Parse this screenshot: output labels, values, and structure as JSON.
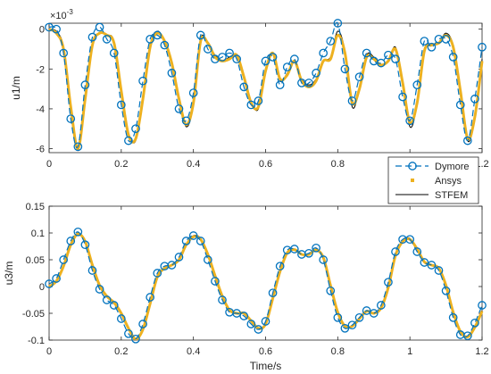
{
  "colors": {
    "dymore": "#0072BD",
    "ansys": "#EDB120",
    "stfem": "#000000",
    "axis": "#262626"
  },
  "chart_data": [
    {
      "type": "line",
      "ylabel": "u1/m",
      "xlabel": "",
      "exponent_label": "×10",
      "exponent_power": "-3",
      "xlim": [
        0,
        1.2
      ],
      "ylim": [
        -6.2,
        0.3
      ],
      "xticks": [
        0,
        0.2,
        0.4,
        0.6,
        0.8,
        1,
        1.2
      ],
      "xticklabels": [
        "0",
        "0.2",
        "0.4",
        "0.6",
        "0.8",
        "1",
        "1.2"
      ],
      "yticks": [
        -6,
        -4,
        -2,
        0
      ],
      "yticklabels": [
        "-6",
        "-4",
        "-2",
        "0"
      ],
      "legend": {
        "placement": "lower-right",
        "entries": [
          "Dymore",
          "Ansys",
          "STFEM"
        ]
      },
      "series": [
        {
          "name": "STFEM",
          "x": [
            0,
            0.02,
            0.04,
            0.06,
            0.08,
            0.1,
            0.12,
            0.14,
            0.16,
            0.18,
            0.2,
            0.22,
            0.24,
            0.26,
            0.28,
            0.3,
            0.32,
            0.34,
            0.36,
            0.38,
            0.4,
            0.42,
            0.44,
            0.46,
            0.48,
            0.5,
            0.52,
            0.54,
            0.56,
            0.58,
            0.6,
            0.62,
            0.64,
            0.66,
            0.68,
            0.7,
            0.72,
            0.74,
            0.76,
            0.78,
            0.8,
            0.82,
            0.84,
            0.86,
            0.88,
            0.9,
            0.92,
            0.94,
            0.96,
            0.98,
            1,
            1.02,
            1.04,
            1.06,
            1.08,
            1.1,
            1.12,
            1.14,
            1.16,
            1.18,
            1.2
          ],
          "values": [
            0,
            -0.1,
            -0.9,
            -3.8,
            -6.1,
            -3.6,
            -0.7,
            -0.2,
            -0.3,
            -0.6,
            -3.0,
            -5.2,
            -5.6,
            -3.6,
            -0.8,
            -0.1,
            -0.6,
            -1.6,
            -3.4,
            -4.9,
            -3.8,
            -0.5,
            -0.7,
            -1.3,
            -1.6,
            -1.4,
            -1.3,
            -2.3,
            -3.6,
            -4.0,
            -2.0,
            -1.2,
            -2.6,
            -2.2,
            -1.6,
            -2.5,
            -2.8,
            -2.5,
            -1.6,
            -1.4,
            -0.1,
            -1.1,
            -3.9,
            -3.0,
            -1.3,
            -1.4,
            -1.8,
            -1.6,
            -0.9,
            -2.6,
            -4.9,
            -3.8,
            -1.0,
            -0.8,
            -0.7,
            -0.2,
            -0.8,
            -3.0,
            -5.6,
            -4.5,
            -1.5
          ]
        },
        {
          "name": "Ansys",
          "x": [
            0,
            0.02,
            0.04,
            0.06,
            0.08,
            0.1,
            0.12,
            0.14,
            0.16,
            0.18,
            0.2,
            0.22,
            0.24,
            0.26,
            0.28,
            0.3,
            0.32,
            0.34,
            0.36,
            0.38,
            0.4,
            0.42,
            0.44,
            0.46,
            0.48,
            0.5,
            0.52,
            0.54,
            0.56,
            0.58,
            0.6,
            0.62,
            0.64,
            0.66,
            0.68,
            0.7,
            0.72,
            0.74,
            0.76,
            0.78,
            0.8,
            0.82,
            0.84,
            0.86,
            0.88,
            0.9,
            0.92,
            0.94,
            0.96,
            0.98,
            1,
            1.02,
            1.04,
            1.06,
            1.08,
            1.1,
            1.12,
            1.14,
            1.16,
            1.18,
            1.2
          ],
          "values": [
            0,
            -0.2,
            -1.0,
            -3.9,
            -6.0,
            -3.5,
            -0.8,
            -0.2,
            -0.3,
            -0.7,
            -3.1,
            -5.3,
            -5.5,
            -3.5,
            -0.9,
            -0.2,
            -0.6,
            -1.7,
            -3.5,
            -4.8,
            -3.7,
            -0.6,
            -0.7,
            -1.4,
            -1.6,
            -1.5,
            -1.3,
            -2.4,
            -3.7,
            -3.9,
            -2.1,
            -1.2,
            -2.5,
            -2.3,
            -1.6,
            -2.6,
            -2.9,
            -2.6,
            -1.6,
            -1.5,
            -0.3,
            -1.2,
            -3.7,
            -3.0,
            -1.4,
            -1.5,
            -1.8,
            -1.6,
            -1.0,
            -2.7,
            -4.7,
            -3.7,
            -1.1,
            -0.8,
            -0.7,
            -0.3,
            -0.9,
            -3.1,
            -5.5,
            -4.4,
            -1.6
          ]
        },
        {
          "name": "Dymore",
          "x": [
            0,
            0.02,
            0.04,
            0.06,
            0.08,
            0.1,
            0.12,
            0.14,
            0.16,
            0.18,
            0.2,
            0.22,
            0.24,
            0.26,
            0.28,
            0.3,
            0.32,
            0.34,
            0.36,
            0.38,
            0.4,
            0.42,
            0.44,
            0.46,
            0.48,
            0.5,
            0.52,
            0.54,
            0.56,
            0.58,
            0.6,
            0.62,
            0.64,
            0.66,
            0.68,
            0.7,
            0.72,
            0.74,
            0.76,
            0.78,
            0.8,
            0.82,
            0.84,
            0.86,
            0.88,
            0.9,
            0.92,
            0.94,
            0.96,
            0.98,
            1,
            1.02,
            1.04,
            1.06,
            1.08,
            1.1,
            1.12,
            1.14,
            1.16,
            1.18,
            1.2
          ],
          "values": [
            0.1,
            0.0,
            -1.2,
            -4.5,
            -5.9,
            -2.8,
            -0.4,
            0.1,
            -0.5,
            -1.2,
            -3.8,
            -5.6,
            -5.0,
            -2.6,
            -0.5,
            -0.3,
            -0.8,
            -2.2,
            -4.0,
            -4.6,
            -3.2,
            -0.3,
            -1.0,
            -1.5,
            -1.4,
            -1.2,
            -1.5,
            -2.9,
            -3.8,
            -3.6,
            -1.6,
            -1.4,
            -2.8,
            -1.9,
            -1.5,
            -2.7,
            -2.7,
            -2.2,
            -1.2,
            -0.6,
            0.3,
            -2.0,
            -3.6,
            -2.4,
            -1.2,
            -1.6,
            -1.7,
            -1.3,
            -1.5,
            -3.4,
            -4.6,
            -2.8,
            -0.6,
            -0.9,
            -0.5,
            -0.5,
            -1.4,
            -3.8,
            -5.6,
            -3.5,
            -0.9
          ]
        }
      ]
    },
    {
      "type": "line",
      "ylabel": "u3/m",
      "xlabel": "Time/s",
      "xlim": [
        0,
        1.2
      ],
      "ylim": [
        -0.1,
        0.15
      ],
      "xticks": [
        0,
        0.2,
        0.4,
        0.6,
        0.8,
        1,
        1.2
      ],
      "xticklabels": [
        "0",
        "0.2",
        "0.4",
        "0.6",
        "0.8",
        "1",
        "1.2"
      ],
      "yticks": [
        -0.1,
        -0.05,
        0,
        0.05,
        0.1,
        0.15
      ],
      "yticklabels": [
        "-0.1",
        "-0.05",
        "0",
        "0.05",
        "0.1",
        "0.15"
      ],
      "series": [
        {
          "name": "STFEM",
          "x": [
            0,
            0.02,
            0.04,
            0.06,
            0.08,
            0.1,
            0.12,
            0.14,
            0.16,
            0.18,
            0.2,
            0.22,
            0.24,
            0.26,
            0.28,
            0.3,
            0.32,
            0.34,
            0.36,
            0.38,
            0.4,
            0.42,
            0.44,
            0.46,
            0.48,
            0.5,
            0.52,
            0.54,
            0.56,
            0.58,
            0.6,
            0.62,
            0.64,
            0.66,
            0.68,
            0.7,
            0.72,
            0.74,
            0.76,
            0.78,
            0.8,
            0.82,
            0.84,
            0.86,
            0.88,
            0.9,
            0.92,
            0.94,
            0.96,
            0.98,
            1,
            1.02,
            1.04,
            1.06,
            1.08,
            1.1,
            1.12,
            1.14,
            1.16,
            1.18,
            1.2
          ],
          "values": [
            0,
            0.01,
            0.04,
            0.08,
            0.1,
            0.085,
            0.04,
            0.0,
            -0.02,
            -0.03,
            -0.05,
            -0.08,
            -0.1,
            -0.08,
            -0.03,
            0.02,
            0.035,
            0.04,
            0.05,
            0.08,
            0.095,
            0.09,
            0.06,
            0.02,
            -0.02,
            -0.045,
            -0.05,
            -0.05,
            -0.065,
            -0.08,
            -0.07,
            -0.02,
            0.03,
            0.065,
            0.07,
            0.06,
            0.06,
            0.07,
            0.055,
            0.0,
            -0.05,
            -0.075,
            -0.075,
            -0.06,
            -0.045,
            -0.05,
            -0.04,
            0.0,
            0.06,
            0.085,
            0.09,
            0.07,
            0.045,
            0.04,
            0.035,
            0.0,
            -0.05,
            -0.085,
            -0.095,
            -0.075,
            -0.045
          ]
        },
        {
          "name": "Ansys",
          "x": [
            0,
            0.02,
            0.04,
            0.06,
            0.08,
            0.1,
            0.12,
            0.14,
            0.16,
            0.18,
            0.2,
            0.22,
            0.24,
            0.26,
            0.28,
            0.3,
            0.32,
            0.34,
            0.36,
            0.38,
            0.4,
            0.42,
            0.44,
            0.46,
            0.48,
            0.5,
            0.52,
            0.54,
            0.56,
            0.58,
            0.6,
            0.62,
            0.64,
            0.66,
            0.68,
            0.7,
            0.72,
            0.74,
            0.76,
            0.78,
            0.8,
            0.82,
            0.84,
            0.86,
            0.88,
            0.9,
            0.92,
            0.94,
            0.96,
            0.98,
            1,
            1.02,
            1.04,
            1.06,
            1.08,
            1.1,
            1.12,
            1.14,
            1.16,
            1.18,
            1.2
          ],
          "values": [
            0,
            0.01,
            0.038,
            0.078,
            0.098,
            0.084,
            0.04,
            0.002,
            -0.018,
            -0.03,
            -0.05,
            -0.078,
            -0.098,
            -0.08,
            -0.032,
            0.018,
            0.034,
            0.04,
            0.05,
            0.078,
            0.093,
            0.088,
            0.06,
            0.02,
            -0.018,
            -0.044,
            -0.05,
            -0.05,
            -0.064,
            -0.078,
            -0.07,
            -0.022,
            0.028,
            0.063,
            0.069,
            0.06,
            0.06,
            0.068,
            0.054,
            0.002,
            -0.048,
            -0.074,
            -0.074,
            -0.06,
            -0.046,
            -0.05,
            -0.04,
            -0.002,
            0.058,
            0.084,
            0.088,
            0.07,
            0.046,
            0.04,
            0.034,
            0.002,
            -0.048,
            -0.084,
            -0.094,
            -0.076,
            -0.046
          ]
        },
        {
          "name": "Dymore",
          "x": [
            0,
            0.02,
            0.04,
            0.06,
            0.08,
            0.1,
            0.12,
            0.14,
            0.16,
            0.18,
            0.2,
            0.22,
            0.24,
            0.26,
            0.28,
            0.3,
            0.32,
            0.34,
            0.36,
            0.38,
            0.4,
            0.42,
            0.44,
            0.46,
            0.48,
            0.5,
            0.52,
            0.54,
            0.56,
            0.58,
            0.6,
            0.62,
            0.64,
            0.66,
            0.68,
            0.7,
            0.72,
            0.74,
            0.76,
            0.78,
            0.8,
            0.82,
            0.84,
            0.86,
            0.88,
            0.9,
            0.92,
            0.94,
            0.96,
            0.98,
            1,
            1.02,
            1.04,
            1.06,
            1.08,
            1.1,
            1.12,
            1.14,
            1.16,
            1.18,
            1.2
          ],
          "values": [
            0.005,
            0.015,
            0.05,
            0.085,
            0.102,
            0.078,
            0.03,
            -0.005,
            -0.025,
            -0.035,
            -0.06,
            -0.088,
            -0.098,
            -0.07,
            -0.02,
            0.025,
            0.038,
            0.04,
            0.055,
            0.085,
            0.095,
            0.085,
            0.05,
            0.01,
            -0.025,
            -0.048,
            -0.05,
            -0.055,
            -0.07,
            -0.08,
            -0.065,
            -0.012,
            0.038,
            0.068,
            0.07,
            0.06,
            0.062,
            0.072,
            0.05,
            -0.008,
            -0.058,
            -0.078,
            -0.072,
            -0.058,
            -0.045,
            -0.05,
            -0.035,
            0.008,
            0.065,
            0.088,
            0.088,
            0.065,
            0.045,
            0.04,
            0.03,
            -0.008,
            -0.058,
            -0.09,
            -0.092,
            -0.068,
            -0.035
          ]
        }
      ]
    }
  ]
}
